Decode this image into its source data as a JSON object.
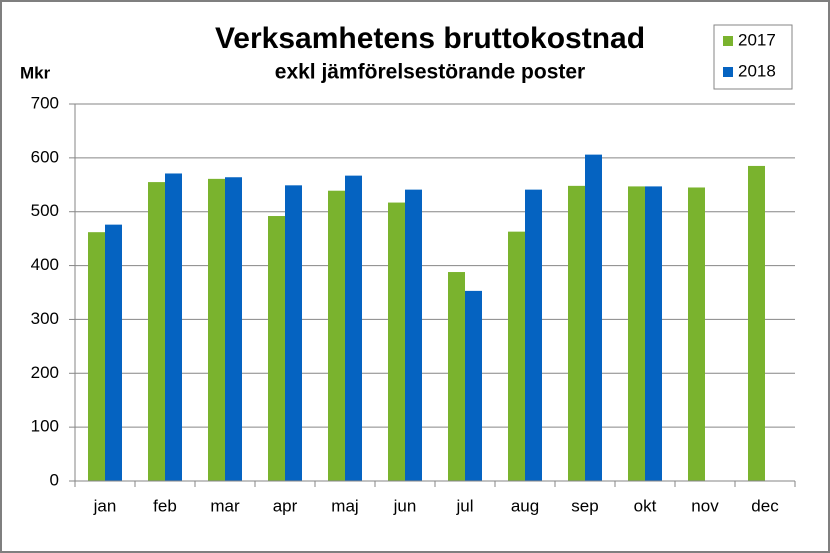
{
  "chart_data": {
    "type": "bar",
    "title": "Verksamhetens bruttokostnad",
    "subtitle": "exkl jämförelsestörande poster",
    "y_label": "Mkr",
    "categories": [
      "jan",
      "feb",
      "mar",
      "apr",
      "maj",
      "jun",
      "jul",
      "aug",
      "sep",
      "okt",
      "nov",
      "dec"
    ],
    "series": [
      {
        "name": "2017",
        "color": "#7ab32e",
        "values": [
          462,
          555,
          561,
          492,
          539,
          517,
          388,
          463,
          548,
          547,
          545,
          585
        ]
      },
      {
        "name": "2018",
        "color": "#0563c1",
        "values": [
          476,
          571,
          564,
          549,
          567,
          541,
          353,
          541,
          606,
          547,
          null,
          null
        ]
      }
    ],
    "ylim": [
      0,
      700
    ],
    "yticks": [
      0,
      100,
      200,
      300,
      400,
      500,
      600,
      700
    ],
    "grid": true,
    "legend": "top-right"
  }
}
